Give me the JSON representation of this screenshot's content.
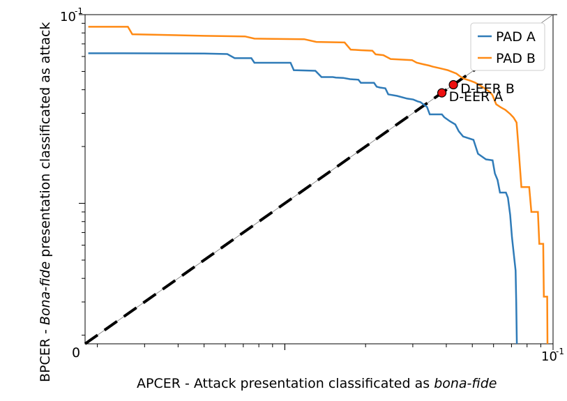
{
  "chart_data": {
    "type": "line",
    "scale": {
      "x": "log",
      "y": "log"
    },
    "xlim": [
      0.0018,
      0.1
    ],
    "ylim": [
      0.0018,
      0.1
    ],
    "grid": false,
    "legend_position": "top-right",
    "xlabel_main": "APCER - Attack presentation  classificated as ",
    "xlabel_italic": "bona-fide",
    "ylabel_prefix": "BPCER - ",
    "ylabel_italic": "Bona-fide",
    "ylabel_suffix": " presentation classificated as attack",
    "ticks": {
      "x_origin": "0",
      "x_end_base": "10",
      "x_end_exp": "-1",
      "y_top_base": "10",
      "y_top_exp": "-1"
    },
    "colors": {
      "pad_a": "#2f7bb8",
      "pad_b": "#ff8a14",
      "diagonal": "#000000",
      "marker": "#ee1111"
    },
    "series": [
      {
        "name": "PAD A",
        "points": [
          [
            0.00185,
            0.0624
          ],
          [
            0.0025,
            0.0624
          ],
          [
            0.005,
            0.0622
          ],
          [
            0.0061,
            0.0618
          ],
          [
            0.0065,
            0.0588
          ],
          [
            0.0075,
            0.0588
          ],
          [
            0.0077,
            0.0556
          ],
          [
            0.0105,
            0.0556
          ],
          [
            0.0108,
            0.0508
          ],
          [
            0.013,
            0.0504
          ],
          [
            0.0137,
            0.0467
          ],
          [
            0.0151,
            0.0467
          ],
          [
            0.0155,
            0.0464
          ],
          [
            0.0165,
            0.0462
          ],
          [
            0.0175,
            0.0455
          ],
          [
            0.0188,
            0.0452
          ],
          [
            0.0192,
            0.0435
          ],
          [
            0.0215,
            0.0435
          ],
          [
            0.022,
            0.0415
          ],
          [
            0.0226,
            0.0411
          ],
          [
            0.0237,
            0.0407
          ],
          [
            0.0243,
            0.0378
          ],
          [
            0.0262,
            0.0371
          ],
          [
            0.0286,
            0.0359
          ],
          [
            0.0301,
            0.0355
          ],
          [
            0.0313,
            0.0347
          ],
          [
            0.032,
            0.0344
          ],
          [
            0.0339,
            0.0324
          ],
          [
            0.0347,
            0.0296
          ],
          [
            0.0385,
            0.0296
          ],
          [
            0.0393,
            0.0286
          ],
          [
            0.0413,
            0.0272
          ],
          [
            0.0432,
            0.0262
          ],
          [
            0.0445,
            0.0241
          ],
          [
            0.0462,
            0.0226
          ],
          [
            0.0505,
            0.0217
          ],
          [
            0.0525,
            0.0183
          ],
          [
            0.0562,
            0.0171
          ],
          [
            0.0595,
            0.0169
          ],
          [
            0.0607,
            0.0144
          ],
          [
            0.0621,
            0.0133
          ],
          [
            0.0634,
            0.0114
          ],
          [
            0.0667,
            0.0114
          ],
          [
            0.0679,
            0.0107
          ],
          [
            0.0692,
            0.0087
          ],
          [
            0.0703,
            0.0066
          ],
          [
            0.0717,
            0.0051
          ],
          [
            0.0725,
            0.0044
          ],
          [
            0.0729,
            0.003
          ],
          [
            0.0732,
            0.002
          ],
          [
            0.0733,
            0.0018
          ]
        ]
      },
      {
        "name": "PAD B",
        "points": [
          [
            0.00185,
            0.0862
          ],
          [
            0.0026,
            0.0862
          ],
          [
            0.0027,
            0.0787
          ],
          [
            0.005,
            0.0772
          ],
          [
            0.0071,
            0.0767
          ],
          [
            0.0077,
            0.0746
          ],
          [
            0.0118,
            0.0741
          ],
          [
            0.0131,
            0.0717
          ],
          [
            0.0167,
            0.0712
          ],
          [
            0.0176,
            0.0653
          ],
          [
            0.0192,
            0.0648
          ],
          [
            0.0212,
            0.0644
          ],
          [
            0.0218,
            0.0616
          ],
          [
            0.0233,
            0.061
          ],
          [
            0.0248,
            0.0582
          ],
          [
            0.0298,
            0.0574
          ],
          [
            0.031,
            0.0557
          ],
          [
            0.0328,
            0.0546
          ],
          [
            0.0345,
            0.0537
          ],
          [
            0.0356,
            0.053
          ],
          [
            0.0378,
            0.052
          ],
          [
            0.0405,
            0.0508
          ],
          [
            0.0436,
            0.0487
          ],
          [
            0.0453,
            0.0468
          ],
          [
            0.0465,
            0.0458
          ],
          [
            0.0494,
            0.0445
          ],
          [
            0.0511,
            0.0437
          ],
          [
            0.0526,
            0.0427
          ],
          [
            0.0545,
            0.0414
          ],
          [
            0.0564,
            0.0401
          ],
          [
            0.0581,
            0.0389
          ],
          [
            0.0594,
            0.0375
          ],
          [
            0.0614,
            0.0335
          ],
          [
            0.0638,
            0.0323
          ],
          [
            0.0664,
            0.0313
          ],
          [
            0.0693,
            0.0297
          ],
          [
            0.0712,
            0.0285
          ],
          [
            0.0731,
            0.0268
          ],
          [
            0.0745,
            0.019
          ],
          [
            0.0762,
            0.0122
          ],
          [
            0.0815,
            0.0122
          ],
          [
            0.083,
            0.009
          ],
          [
            0.0878,
            0.009
          ],
          [
            0.0889,
            0.0061
          ],
          [
            0.0919,
            0.0061
          ],
          [
            0.0924,
            0.0032
          ],
          [
            0.0951,
            0.0032
          ],
          [
            0.0953,
            0.0018
          ]
        ]
      }
    ],
    "annotations": [
      {
        "label": "D-EER A",
        "x": 0.0385,
        "y": 0.0385,
        "series": "PAD A"
      },
      {
        "label": "D-EER B",
        "x": 0.0425,
        "y": 0.0425,
        "series": "PAD B"
      }
    ]
  }
}
